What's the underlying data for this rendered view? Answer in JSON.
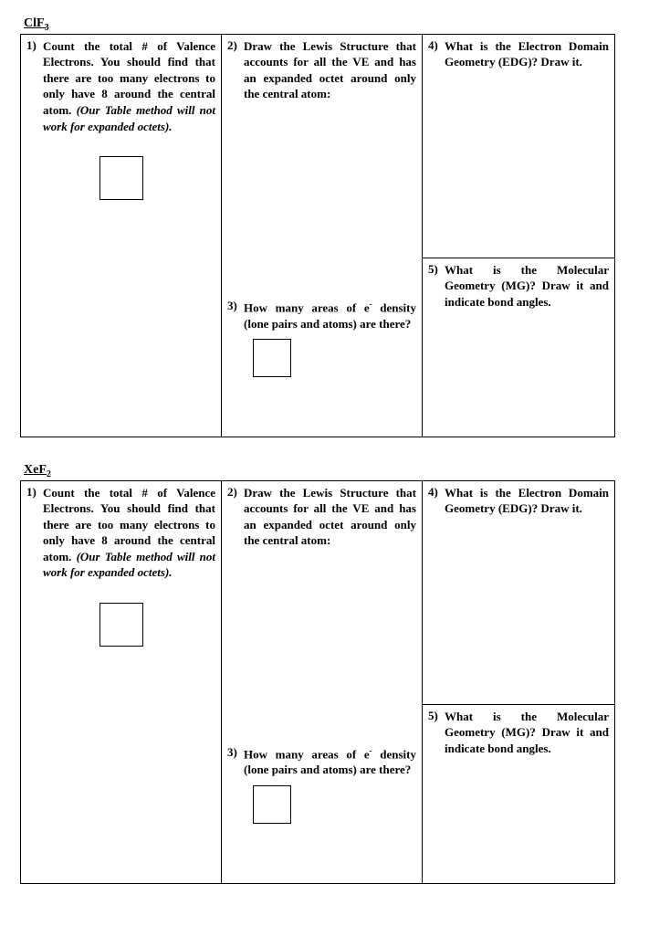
{
  "sections": [
    {
      "formula_html": "ClF<sub>3</sub>",
      "q1_num": "1)",
      "q1_a": "Count the total # of Valence Electrons.  You should find that there are too many electrons to only have 8 around the central atom. ",
      "q1_b": "(Our Table method will not work for expanded octets).",
      "q2_num": "2)",
      "q2": "Draw the Lewis Structure that accounts for all the VE and has an expanded octet around only the central atom:",
      "q3_num": "3)",
      "q3_a": "How many areas of e",
      "q3_b": " density (lone pairs and atoms) are there?",
      "q4_num": "4)",
      "q4": "What is the Electron Domain Geometry (EDG)?  Draw it.",
      "q5_num": "5)",
      "q5": "What is the Molecular Geometry (MG)? Draw it and indicate bond angles."
    },
    {
      "formula_html": "XeF<sub>2</sub>",
      "q1_num": "1)",
      "q1_a": "Count the total # of Valence Electrons.  You should find that there are too many electrons to only have 8 around the central atom. ",
      "q1_b": "(Our Table method will not work for expanded octets).",
      "q2_num": "2)",
      "q2": "Draw the Lewis Structure that accounts for all the VE and has an expanded octet around only the central atom:",
      "q3_num": "3)",
      "q3_a": "How many areas of e",
      "q3_b": " density (lone pairs and atoms) are there?",
      "q4_num": "4)",
      "q4": "What is the Electron Domain Geometry (EDG)?  Draw it.",
      "q5_num": "5)",
      "q5": "What is the Molecular Geometry (MG)? Draw it and indicate bond angles."
    }
  ]
}
